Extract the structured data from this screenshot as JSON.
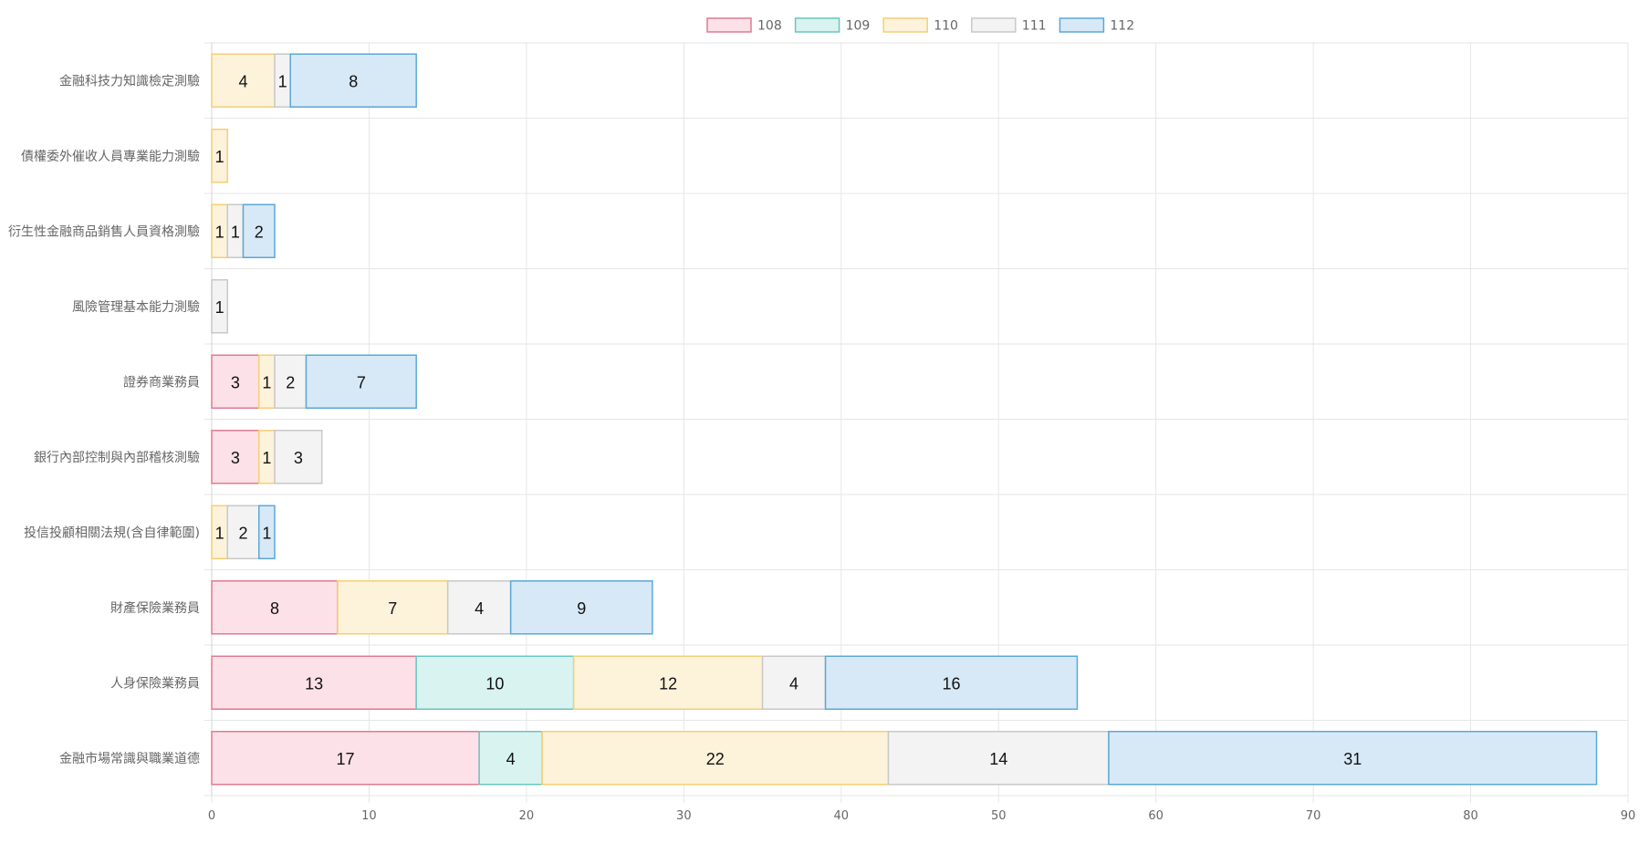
{
  "chart_data": {
    "type": "bar",
    "orientation": "horizontal",
    "stacked": true,
    "categories": [
      "金融科技力知識檢定測驗",
      "債權委外催收人員專業能力測驗",
      "衍生性金融商品銷售人員資格測驗",
      "風險管理基本能力測驗",
      "證券商業務員",
      "銀行內部控制與內部稽核測驗",
      "投信投顧相關法規(含自律範圍)",
      "財產保險業務員",
      "人身保險業務員",
      "金融市場常識與職業道德"
    ],
    "series": [
      {
        "name": "108",
        "fill": "#fde1e8",
        "stroke": "#e07b93",
        "values": [
          0,
          0,
          0,
          0,
          3,
          3,
          0,
          8,
          13,
          17
        ]
      },
      {
        "name": "109",
        "fill": "#d9f3f1",
        "stroke": "#69c6c0",
        "values": [
          0,
          0,
          0,
          0,
          0,
          0,
          0,
          0,
          10,
          4
        ]
      },
      {
        "name": "110",
        "fill": "#fdf3db",
        "stroke": "#f4cf74",
        "values": [
          4,
          1,
          1,
          0,
          1,
          1,
          1,
          7,
          12,
          22
        ]
      },
      {
        "name": "111",
        "fill": "#f3f3f3",
        "stroke": "#c8c8c8",
        "values": [
          1,
          0,
          1,
          1,
          2,
          3,
          2,
          4,
          4,
          14
        ]
      },
      {
        "name": "112",
        "fill": "#d7e9f7",
        "stroke": "#5ba8d6",
        "values": [
          8,
          0,
          2,
          0,
          7,
          0,
          1,
          9,
          16,
          31
        ]
      }
    ],
    "xlim": [
      0,
      90
    ],
    "xticks": [
      0,
      10,
      20,
      30,
      40,
      50,
      60,
      70,
      80,
      90
    ],
    "grid": true,
    "legend_position": "top",
    "title": "",
    "xlabel": "",
    "ylabel": "",
    "gridColor": "#e6e6e6"
  }
}
